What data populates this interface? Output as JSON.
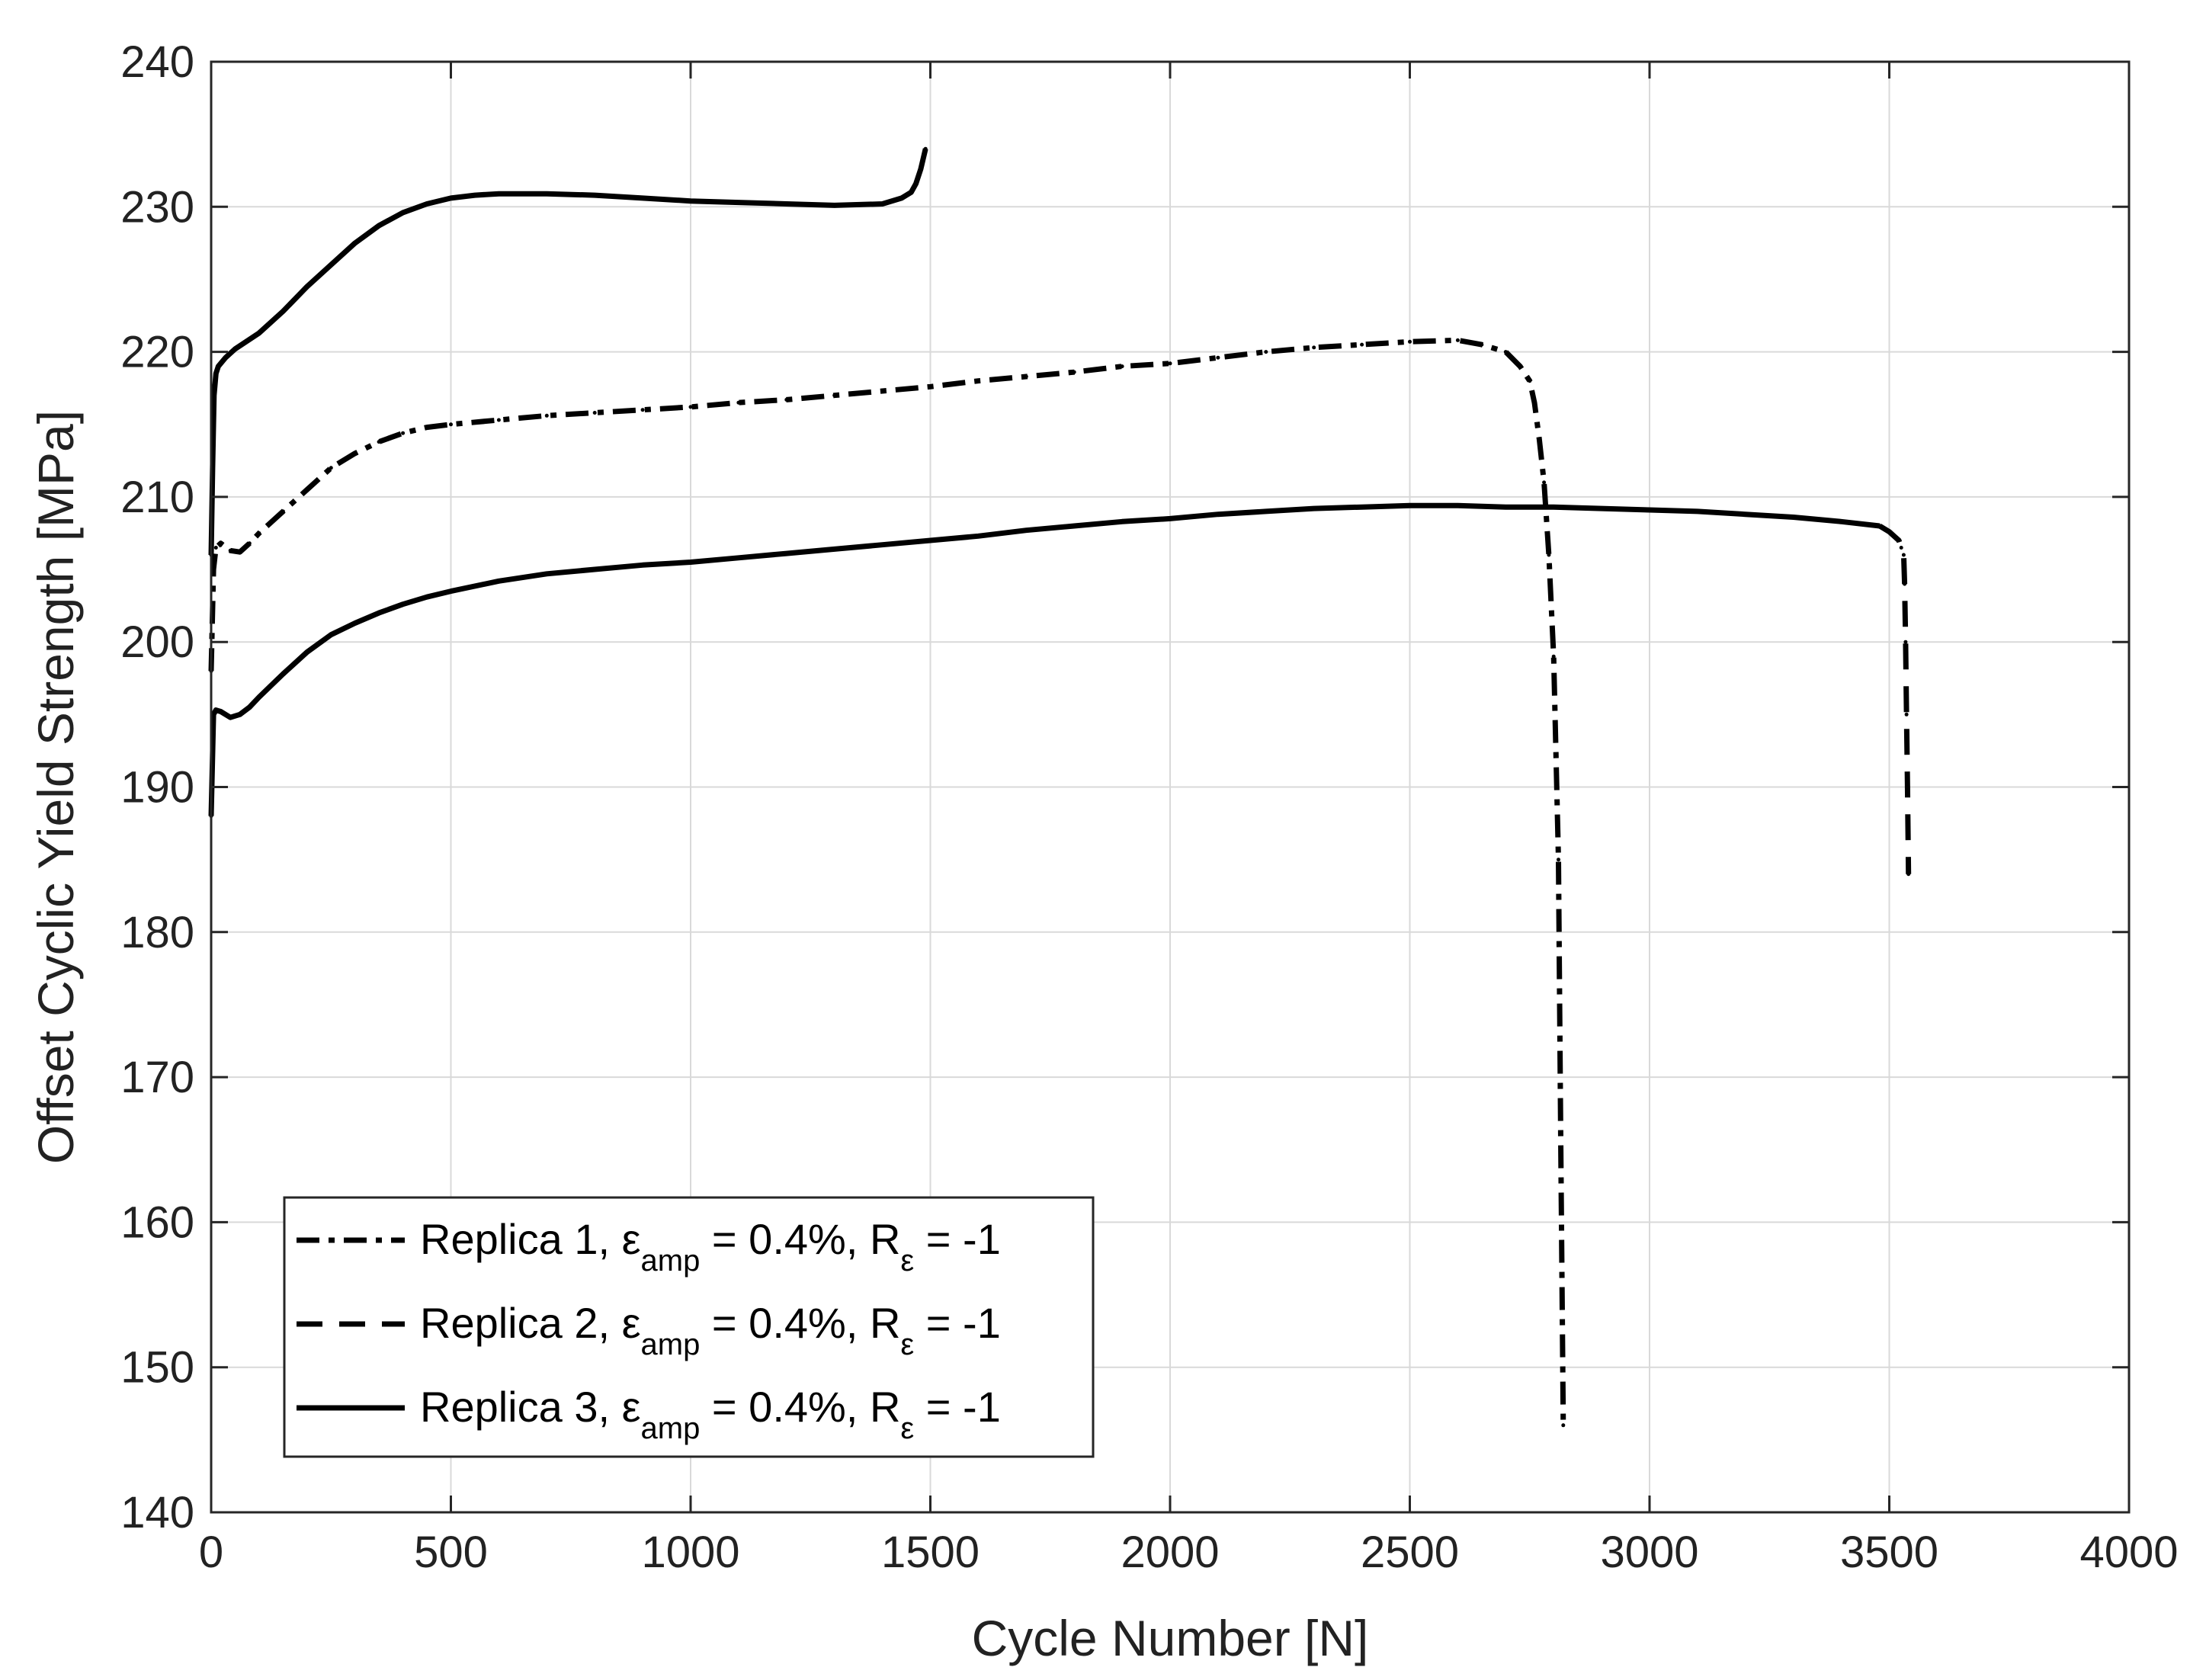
{
  "chart_data": {
    "type": "line",
    "xlabel": "Cycle Number [N]",
    "ylabel": "Offset Cyclic Yield Strength [MPa]",
    "xlim": [
      0,
      4000
    ],
    "ylim": [
      140,
      240
    ],
    "xticks": [
      0,
      500,
      1000,
      1500,
      2000,
      2500,
      3000,
      3500,
      4000
    ],
    "yticks": [
      140,
      150,
      160,
      170,
      180,
      190,
      200,
      210,
      220,
      230,
      240
    ],
    "grid": true,
    "legend_position": "bottom-left",
    "colors": {
      "series": "#000000",
      "grid": "#d9d9d9",
      "axis": "#262626"
    },
    "legend": [
      {
        "series": 0,
        "prefix": "Replica 1, ε",
        "sub1": "amp",
        "mid": " = 0.4%, R",
        "sub2": "ε",
        "suffix": " = -1"
      },
      {
        "series": 1,
        "prefix": "Replica 2, ε",
        "sub1": "amp",
        "mid": " = 0.4%, R",
        "sub2": "ε",
        "suffix": " = -1"
      },
      {
        "series": 2,
        "prefix": "Replica 3, ε",
        "sub1": "amp",
        "mid": " = 0.4%, R",
        "sub2": "ε",
        "suffix": " = -1"
      }
    ],
    "series": [
      {
        "style": "dash-dot",
        "x": [
          0,
          5,
          10,
          20,
          40,
          60,
          80,
          100,
          150,
          200,
          250,
          300,
          350,
          400,
          450,
          500,
          600,
          700,
          800,
          900,
          1000,
          1100,
          1200,
          1300,
          1400,
          1500,
          1600,
          1700,
          1800,
          1900,
          2000,
          2100,
          2200,
          2300,
          2400,
          2500,
          2600,
          2650,
          2700,
          2730,
          2750,
          2760,
          2770,
          2780,
          2790,
          2800,
          2810,
          2815,
          2820
        ],
        "y": [
          198,
          205,
          206.5,
          206.8,
          206.3,
          206.2,
          206.8,
          207.5,
          209,
          210.5,
          212,
          213,
          213.8,
          214.4,
          214.8,
          215,
          215.3,
          215.6,
          215.8,
          216,
          216.2,
          216.5,
          216.7,
          217,
          217.3,
          217.6,
          218,
          218.3,
          218.6,
          219,
          219.2,
          219.6,
          220,
          220.3,
          220.5,
          220.7,
          220.8,
          220.5,
          220,
          219,
          218,
          216.5,
          214,
          211,
          206,
          199,
          185,
          165,
          146
        ]
      },
      {
        "style": "dash",
        "x": [
          3480,
          3500,
          3510,
          3520,
          3525,
          3530,
          3532,
          3534,
          3536,
          3538,
          3540
        ],
        "y": [
          208,
          207.6,
          207.3,
          207,
          206.5,
          206,
          204,
          200,
          195,
          190,
          184
        ]
      },
      {
        "style": "solid",
        "x": [
          0,
          5,
          10,
          20,
          40,
          60,
          80,
          100,
          150,
          200,
          250,
          300,
          350,
          400,
          450,
          500,
          600,
          700,
          800,
          900,
          1000,
          1100,
          1200,
          1300,
          1400,
          1500,
          1600,
          1700,
          1800,
          1900,
          2000,
          2100,
          2200,
          2300,
          2400,
          2500,
          2600,
          2700,
          2800,
          2900,
          3000,
          3100,
          3200,
          3300,
          3400,
          3480
        ],
        "y": [
          188,
          195,
          195.3,
          195.2,
          194.8,
          195,
          195.5,
          196.2,
          197.8,
          199.3,
          200.5,
          201.3,
          202,
          202.6,
          203.1,
          203.5,
          204.2,
          204.7,
          205,
          205.3,
          205.5,
          205.8,
          206.1,
          206.4,
          206.7,
          207,
          207.3,
          207.7,
          208,
          208.3,
          208.5,
          208.8,
          209,
          209.2,
          209.3,
          209.4,
          209.4,
          209.3,
          209.3,
          209.2,
          209.1,
          209,
          208.8,
          208.6,
          208.3,
          208
        ]
      },
      {
        "style": "solid",
        "x": [
          0,
          3,
          6,
          10,
          15,
          20,
          30,
          50,
          100,
          150,
          200,
          250,
          300,
          350,
          400,
          450,
          500,
          550,
          600,
          700,
          800,
          900,
          1000,
          1100,
          1200,
          1300,
          1400,
          1440,
          1460,
          1470,
          1480,
          1490
        ],
        "y": [
          206,
          212,
          217,
          218.5,
          219,
          219.2,
          219.6,
          220.2,
          221.3,
          222.8,
          224.5,
          226,
          227.5,
          228.7,
          229.6,
          230.2,
          230.6,
          230.8,
          230.9,
          230.9,
          230.8,
          230.6,
          230.4,
          230.3,
          230.2,
          230.1,
          230.2,
          230.6,
          231,
          231.6,
          232.6,
          234
        ]
      }
    ]
  }
}
